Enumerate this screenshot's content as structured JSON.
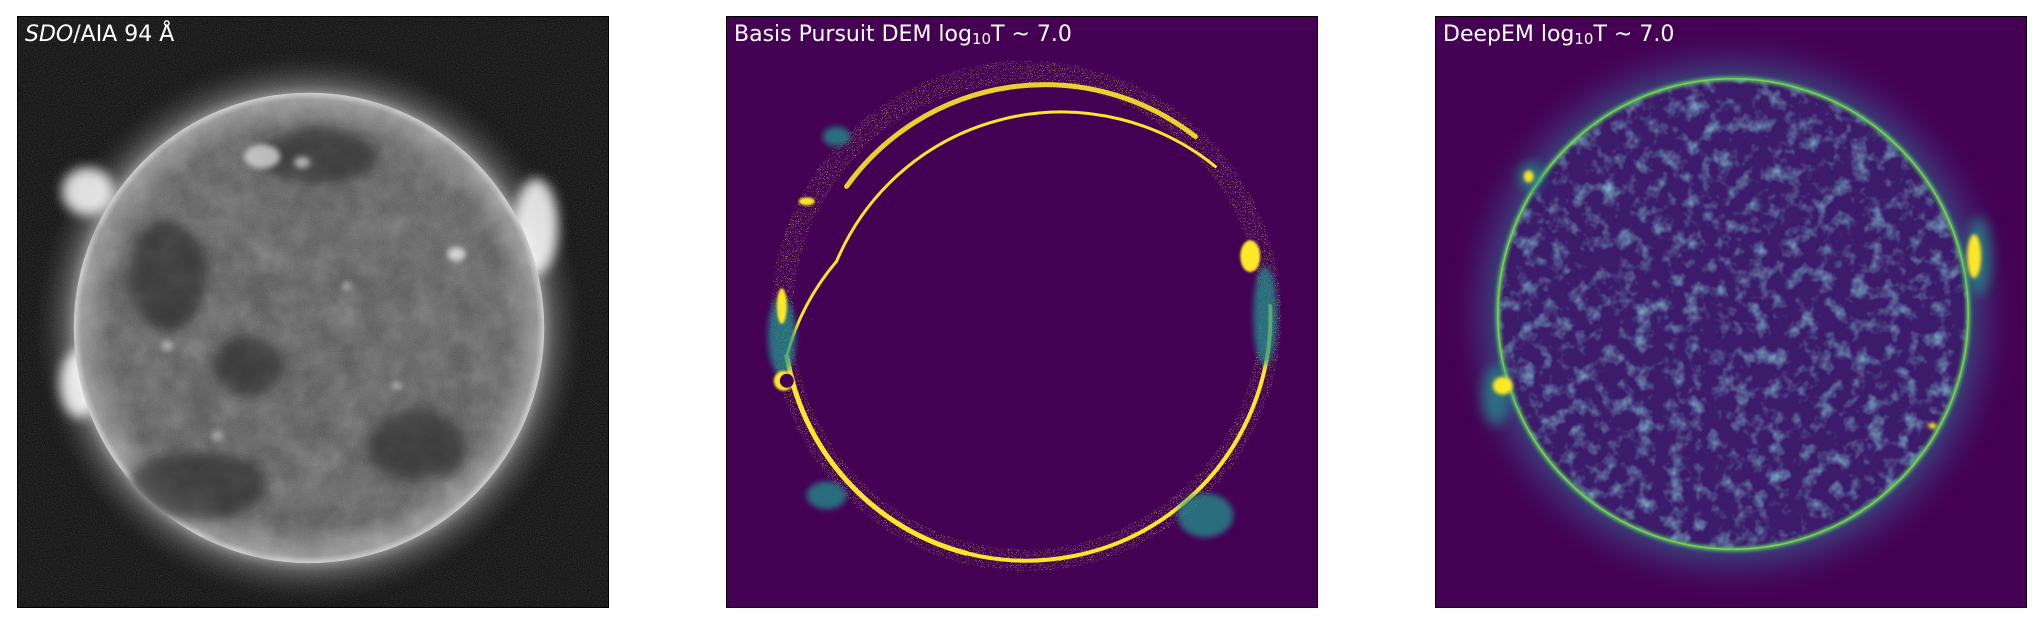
{
  "panels": [
    {
      "title_italic": "SDO",
      "title_rest": "/AIA 94 Å",
      "background": "#000000",
      "disk_color": "#4a4a4a",
      "limb_color": "#e6e6e6"
    },
    {
      "title_pre": "Basis Pursuit DEM log",
      "title_sub": "10",
      "title_post": "T ~ 7.0",
      "background": "#440154",
      "limb_color": "#fde725",
      "accent_color": "#21918c"
    },
    {
      "title_pre": "DeepEM log",
      "title_sub": "10",
      "title_post": "T ~ 7.0",
      "background": "#440154",
      "disk_color": "#3b1b6a",
      "limb_color": "#5ec962",
      "accent_color": "#fde725"
    }
  ]
}
